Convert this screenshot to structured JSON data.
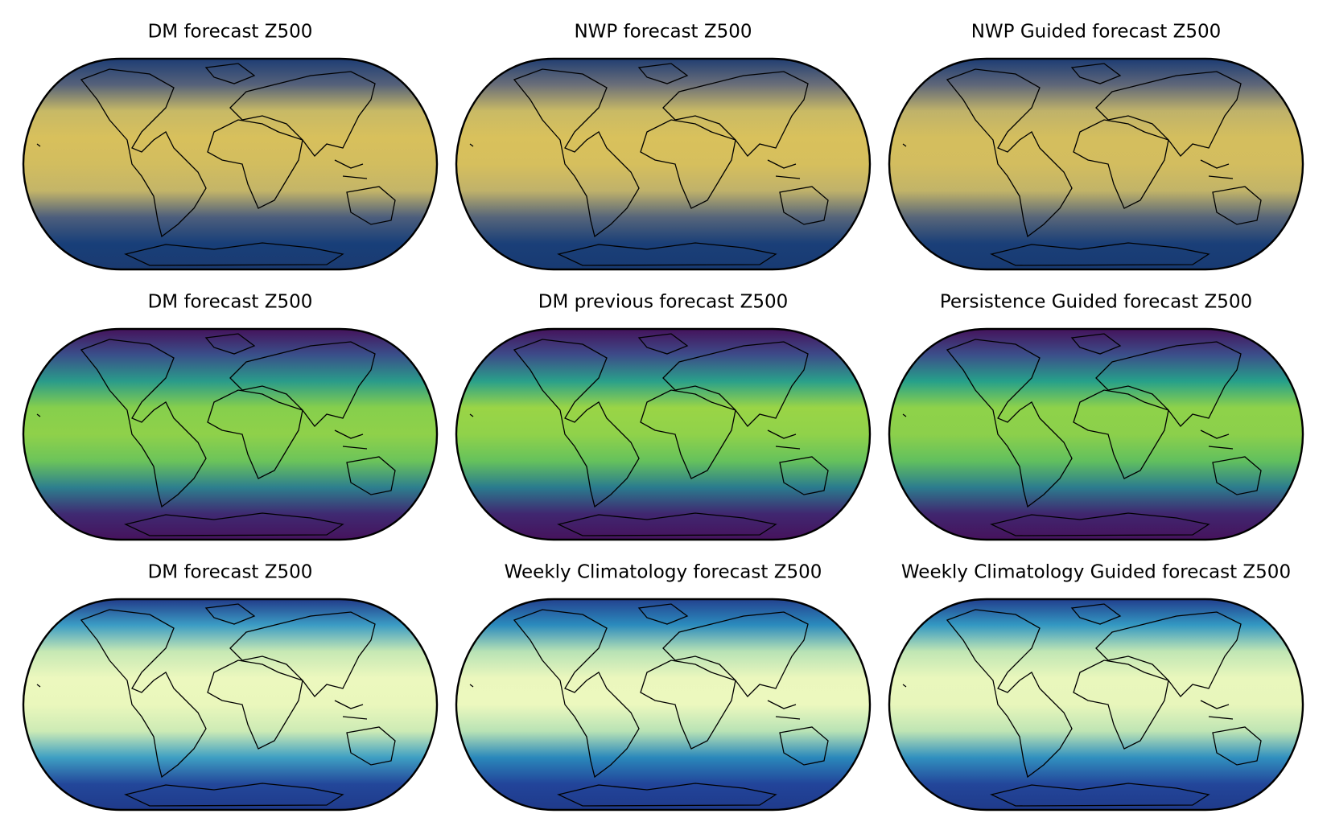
{
  "panels": [
    {
      "title": "DM forecast Z500",
      "colors": [
        "#1c3c74",
        "#55617a",
        "#c7b966",
        "#d8c05c",
        "#d2bd5f",
        "#c4b568",
        "#4d5e7c",
        "#183f79",
        "#1b3a70"
      ]
    },
    {
      "title": "NWP forecast Z500",
      "colors": [
        "#1f3d72",
        "#6a6e79",
        "#c9ba65",
        "#d9c15c",
        "#d6bf5d",
        "#c0b26a",
        "#56657a",
        "#1a3f78",
        "#183a72"
      ]
    },
    {
      "title": "NWP Guided forecast Z500",
      "colors": [
        "#1b3b74",
        "#5e6679",
        "#bfb26a",
        "#d4be5e",
        "#d3bd5f",
        "#c2b468",
        "#586679",
        "#1a3f78",
        "#183a72"
      ]
    },
    {
      "title": "DM forecast Z500",
      "colors": [
        "#45115a",
        "#3a4f8a",
        "#2a9b8a",
        "#86cf4c",
        "#8fd14a",
        "#6cc45a",
        "#2d7f8e",
        "#3f2a72",
        "#46125c"
      ]
    },
    {
      "title": "DM previous forecast Z500",
      "colors": [
        "#45115a",
        "#3d4b89",
        "#2aa08a",
        "#9ad546",
        "#90d24a",
        "#66c25c",
        "#2a7b8e",
        "#402770",
        "#46125c"
      ]
    },
    {
      "title": "Persistence Guided forecast Z500",
      "colors": [
        "#45115a",
        "#3c4e8a",
        "#26a08a",
        "#8ed24a",
        "#8cd04b",
        "#62c05e",
        "#2c7c8e",
        "#40266f",
        "#46125c"
      ]
    },
    {
      "title": "DM forecast Z500",
      "colors": [
        "#213888",
        "#3b9cc4",
        "#c6e8b4",
        "#ecf8be",
        "#eaf7bc",
        "#cdebb5",
        "#3e9fc3",
        "#23479a",
        "#1f3a8a"
      ]
    },
    {
      "title": "Weekly Climatology forecast Z500",
      "colors": [
        "#23408e",
        "#2b8bbd",
        "#b7e2b5",
        "#ebf7bd",
        "#ecf8be",
        "#b9e3b5",
        "#2a88bb",
        "#22449a",
        "#1f3a8a"
      ]
    },
    {
      "title": "Weekly Climatology Guided forecast Z500",
      "colors": [
        "#213c8c",
        "#3398c2",
        "#c0e6b4",
        "#e9f7bc",
        "#e8f6bb",
        "#bfe5b4",
        "#3190bf",
        "#23469a",
        "#1f3a8a"
      ]
    }
  ]
}
